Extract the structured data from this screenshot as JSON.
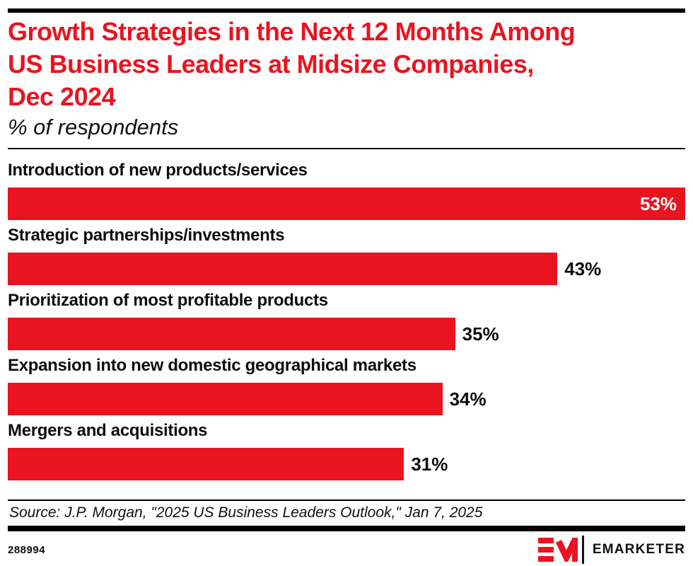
{
  "chart_data": {
    "type": "bar",
    "orientation": "horizontal",
    "title": "Growth Strategies in the Next 12 Months Among US Business Leaders at Midsize Companies, Dec 2024",
    "subtitle": "% of respondents",
    "categories": [
      "Introduction of new products/services",
      "Strategic partnerships/investments",
      "Prioritization of most profitable products",
      "Expansion into new domestic geographical markets",
      "Mergers and acquisitions"
    ],
    "values": [
      53,
      43,
      35,
      34,
      31
    ],
    "value_labels": [
      "53%",
      "43%",
      "35%",
      "34%",
      "31%"
    ],
    "unit": "%",
    "xlim": [
      0,
      53
    ],
    "grid": false,
    "legend": "none",
    "bar_color": "#E9141F",
    "value_label_style": "max bar: white label inside right edge; other bars: black label outside right of bar"
  },
  "header": {
    "title_lines": [
      "Growth Strategies in the Next 12 Months Among",
      "US Business Leaders at Midsize Companies,",
      "Dec 2024"
    ],
    "subtitle": "% of respondents"
  },
  "source_line": "Source: J.P. Morgan, \"2025 US Business Leaders Outlook,\" Jan 7, 2025",
  "footer": {
    "chart_id": "288994",
    "brand_wordmark": "EMARKETER"
  },
  "colors": {
    "accent_red": "#E9141F",
    "text": "#0D0D0D",
    "background": "#FFFFFF"
  }
}
